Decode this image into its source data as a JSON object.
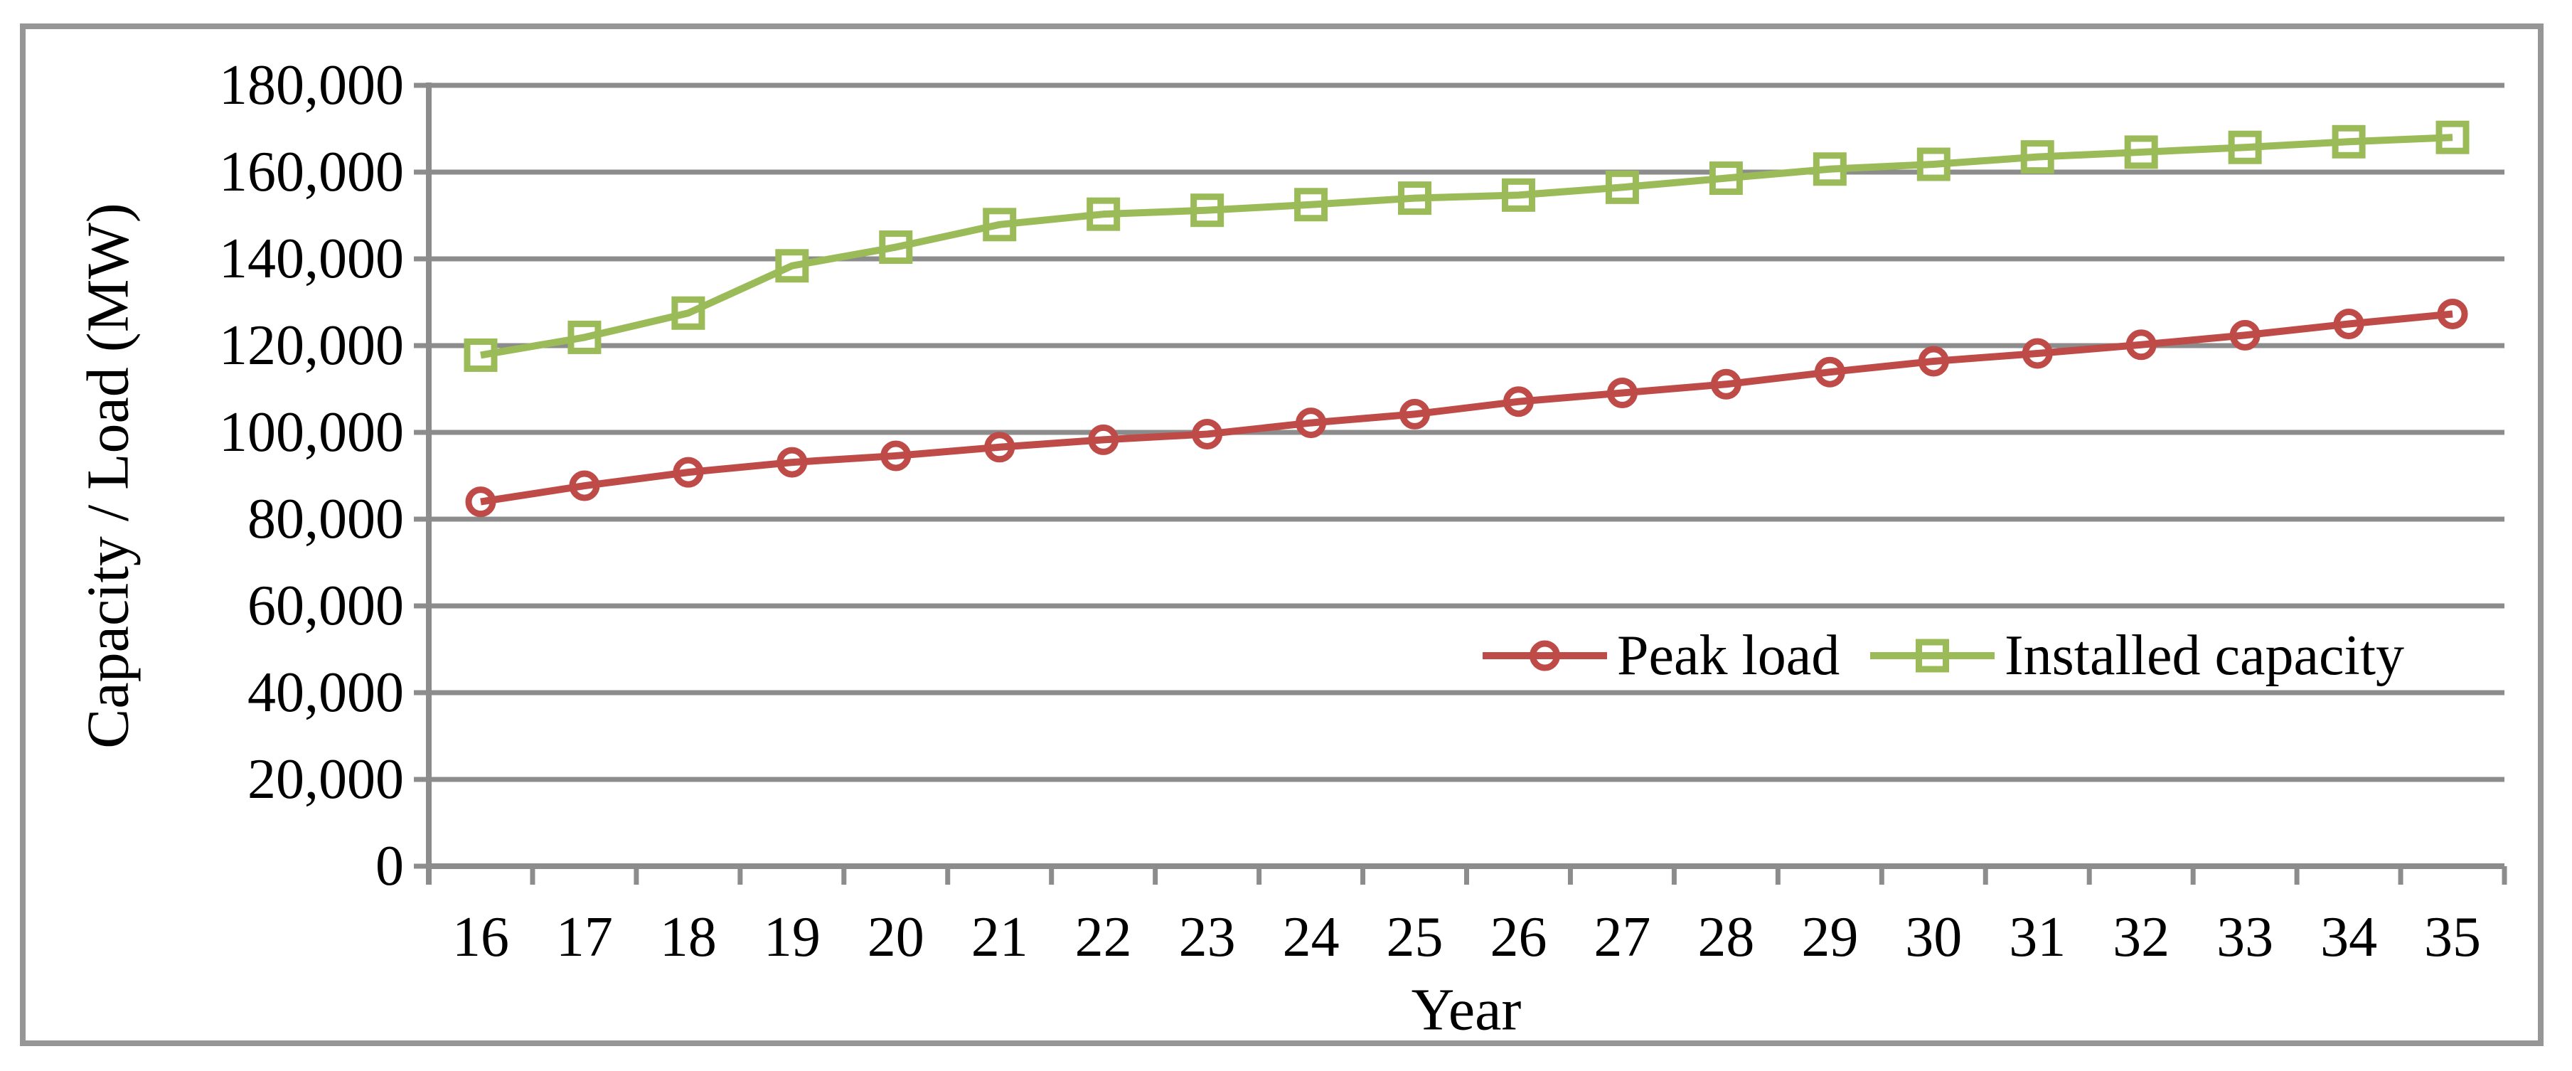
{
  "figure": {
    "background": "#ffffff",
    "border_color": "#969696",
    "gridline_color": "#8C8C8C",
    "axis_color": "#8C8C8C"
  },
  "chart_data": {
    "type": "line",
    "title": "",
    "xlabel": "Year",
    "ylabel": "Capacity / Load (MW)",
    "categories": [
      16,
      17,
      18,
      19,
      20,
      21,
      22,
      23,
      24,
      25,
      26,
      27,
      28,
      29,
      30,
      31,
      32,
      33,
      34,
      35
    ],
    "x_tick_labels": [
      "16",
      "17",
      "18",
      "19",
      "20",
      "21",
      "22",
      "23",
      "24",
      "25",
      "26",
      "27",
      "28",
      "29",
      "30",
      "31",
      "32",
      "33",
      "34",
      "35"
    ],
    "y_tick_labels": [
      "0",
      "20,000",
      "40,000",
      "60,000",
      "80,000",
      "100,000",
      "120,000",
      "140,000",
      "160,000",
      "180,000"
    ],
    "y_tick_values": [
      0,
      20000,
      40000,
      60000,
      80000,
      100000,
      120000,
      140000,
      160000,
      180000
    ],
    "ylim": [
      0,
      180000
    ],
    "grid": "horizontal-major",
    "legend_position": "inside-plot-middle-right",
    "series": [
      {
        "name": "Peak load",
        "color": "#BE4B48",
        "marker": "circle",
        "values": [
          84000,
          87700,
          90800,
          93100,
          94600,
          96600,
          98300,
          99600,
          102200,
          104200,
          107100,
          109100,
          111100,
          113900,
          116400,
          118200,
          120200,
          122400,
          125000,
          127300
        ]
      },
      {
        "name": "Installed capacity",
        "color": "#9BBB59",
        "marker": "square",
        "values": [
          117800,
          121900,
          127500,
          138400,
          142700,
          147900,
          150300,
          151200,
          152500,
          154000,
          154700,
          156500,
          158600,
          160700,
          161800,
          163500,
          164600,
          165700,
          167000,
          168000
        ]
      }
    ]
  }
}
